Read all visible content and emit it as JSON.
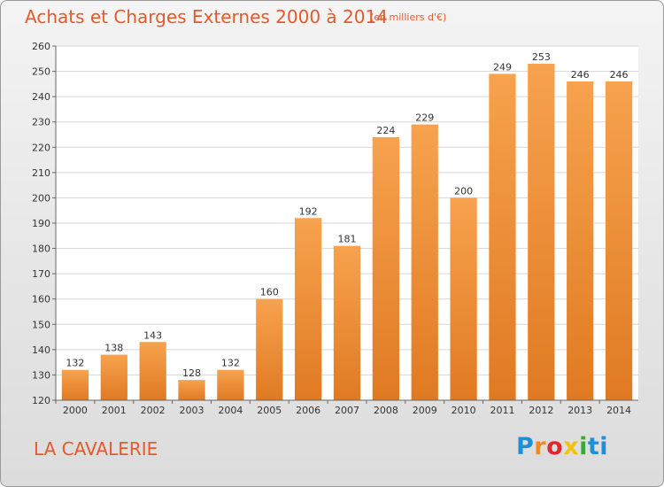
{
  "chart_data": {
    "type": "bar",
    "title": "Achats et Charges Externes 2000 à 2014",
    "subtitle": "(en milliers d'€)",
    "categories": [
      "2000",
      "2001",
      "2002",
      "2003",
      "2004",
      "2005",
      "2006",
      "2007",
      "2008",
      "2009",
      "2010",
      "2011",
      "2012",
      "2013",
      "2014"
    ],
    "values": [
      132,
      138,
      143,
      128,
      132,
      160,
      192,
      181,
      224,
      229,
      200,
      249,
      253,
      246,
      246
    ],
    "ylim": [
      120,
      260
    ],
    "yticks": [
      120,
      130,
      140,
      150,
      160,
      170,
      180,
      190,
      200,
      210,
      220,
      230,
      240,
      250,
      260
    ],
    "grid": true,
    "bar_color": "#f5a04e",
    "bar_color_dark": "#e07a22"
  },
  "place_name": "LA CAVALERIE",
  "logo": {
    "letters": [
      "P",
      "r",
      "o",
      "x",
      "i",
      "ti"
    ]
  }
}
